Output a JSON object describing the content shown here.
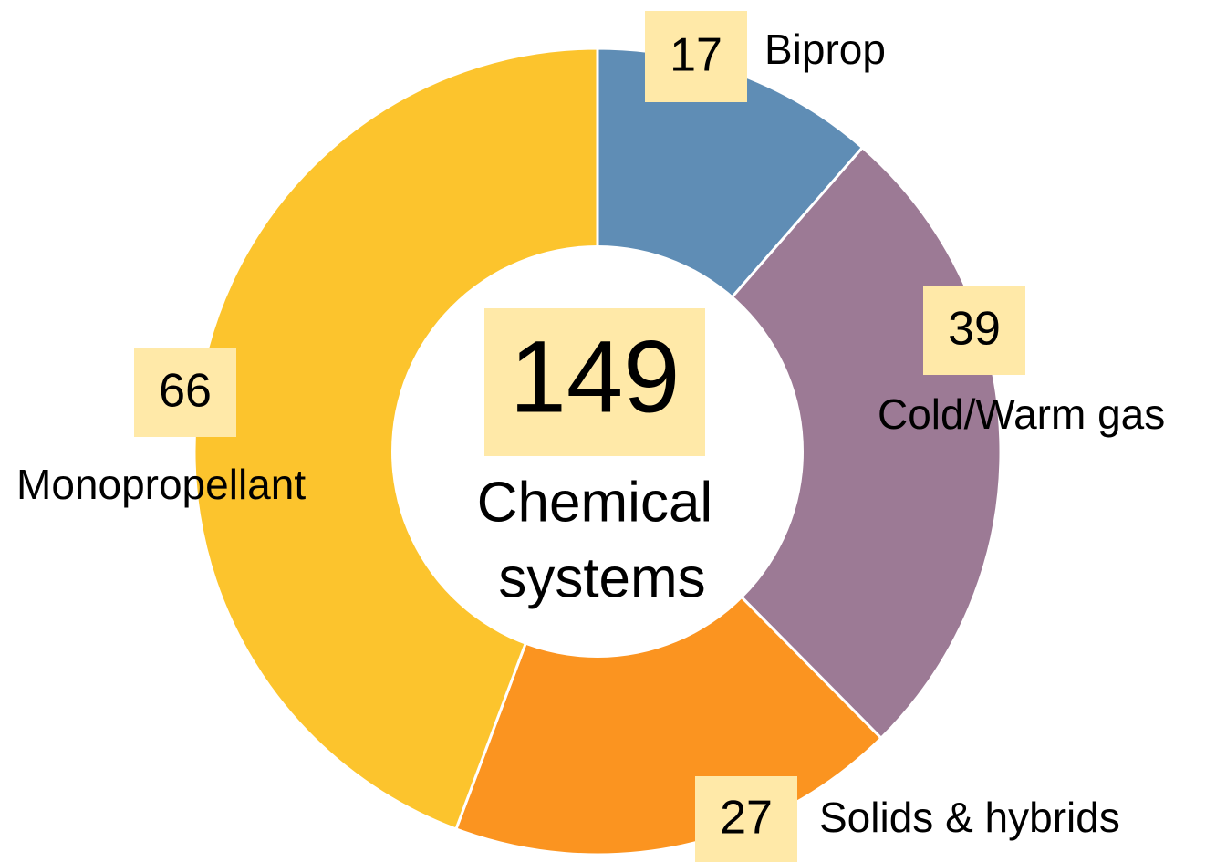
{
  "chart_data": {
    "type": "donut",
    "categories": [
      "Biprop",
      "Cold/Warm gas",
      "Solids & hybrids",
      "Monopropellant"
    ],
    "values": [
      17,
      39,
      27,
      66
    ],
    "colors": [
      "#5F8DB5",
      "#9C7A95",
      "#FB9420",
      "#FCC42D"
    ],
    "center_value": 149,
    "center_label": [
      "Chemical",
      "systems"
    ]
  }
}
